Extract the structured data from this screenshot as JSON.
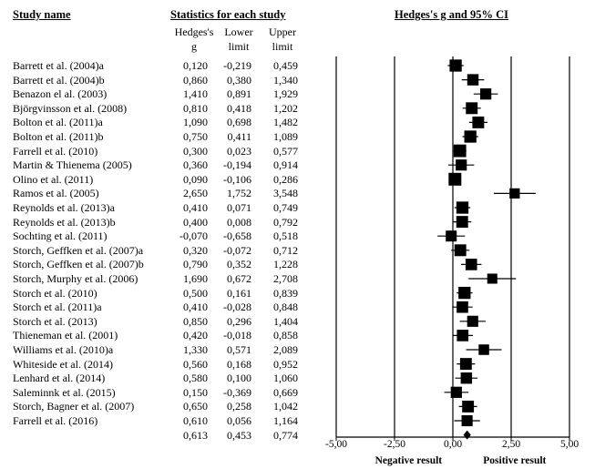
{
  "headers": {
    "study": "Study name",
    "stats": "Statistics for each study",
    "ci": "Hedges's g and 95% CI",
    "col_g": [
      "Hedges's",
      "g"
    ],
    "col_lower": [
      "Lower",
      "limit"
    ],
    "col_upper": [
      "Upper",
      "limit"
    ]
  },
  "rows": [
    {
      "name": "Barrett et al. (2004)a",
      "g": "0,120",
      "lower": "-0,219",
      "upper": "0,459"
    },
    {
      "name": "Barrett et al. (2004)b",
      "g": "0,860",
      "lower": "0,380",
      "upper": "1,340"
    },
    {
      "name": "Benazon el al. (2003)",
      "g": "1,410",
      "lower": "0,891",
      "upper": "1,929"
    },
    {
      "name": "Björgvinsson et al. (2008)",
      "g": "0,810",
      "lower": "0,418",
      "upper": "1,202"
    },
    {
      "name": "Bolton et al. (2011)a",
      "g": "1,090",
      "lower": "0,698",
      "upper": "1,482"
    },
    {
      "name": "Bolton et al. (2011)b",
      "g": "0,750",
      "lower": "0,411",
      "upper": "1,089"
    },
    {
      "name": "Farrell et al. (2010)",
      "g": "0,300",
      "lower": "0,023",
      "upper": "0,577"
    },
    {
      "name": "Martin & Thienema (2005)",
      "g": "0,360",
      "lower": "-0,194",
      "upper": "0,914"
    },
    {
      "name": "Olino et al. (2011)",
      "g": "0,090",
      "lower": "-0,106",
      "upper": "0,286"
    },
    {
      "name": "Ramos et al. (2005)",
      "g": "2,650",
      "lower": "1,752",
      "upper": "3,548"
    },
    {
      "name": "Reynolds et al. (2013)a",
      "g": "0,410",
      "lower": "0,071",
      "upper": "0,749"
    },
    {
      "name": "Reynolds et al. (2013)b",
      "g": "0,400",
      "lower": "0,008",
      "upper": "0,792"
    },
    {
      "name": "Sochting et al. (2011)",
      "g": "-0,070",
      "lower": "-0,658",
      "upper": "0,518"
    },
    {
      "name": "Storch, Geffken et al. (2007)a",
      "g": "0,320",
      "lower": "-0,072",
      "upper": "0,712"
    },
    {
      "name": "Storch, Geffken et al. (2007)b",
      "g": "0,790",
      "lower": "0,352",
      "upper": "1,228"
    },
    {
      "name": "Storch, Murphy et al. (2006)",
      "g": "1,690",
      "lower": "0,672",
      "upper": "2,708"
    },
    {
      "name": "Storch et al. (2010)",
      "g": "0,500",
      "lower": "0,161",
      "upper": "0,839"
    },
    {
      "name": "Storch et al. (2011)a",
      "g": "0,410",
      "lower": "-0,028",
      "upper": "0,848"
    },
    {
      "name": "Storch et al. (2013)",
      "g": "0,850",
      "lower": "0,296",
      "upper": "1,404"
    },
    {
      "name": "Thieneman et al. (2001)",
      "g": "0,420",
      "lower": "-0,018",
      "upper": "0,858"
    },
    {
      "name": "Williams et al. (2010)a",
      "g": "1,330",
      "lower": "0,571",
      "upper": "2,089"
    },
    {
      "name": "Whiteside et al. (2014)",
      "g": "0,560",
      "lower": "0,168",
      "upper": "0,952"
    },
    {
      "name": "Lenhard et al. (2014)",
      "g": "0,580",
      "lower": "0,100",
      "upper": "1,060"
    },
    {
      "name": "Saleminnk et al. (2015)",
      "g": "0,150",
      "lower": "-0,369",
      "upper": "0,669"
    },
    {
      "name": "Storch, Bagner et al. (2007)",
      "g": "0,650",
      "lower": "0,258",
      "upper": "1,042"
    },
    {
      "name": "Farrell et al. (2016)",
      "g": "0,610",
      "lower": "0,056",
      "upper": "1,164"
    }
  ],
  "summary": {
    "g": "0,613",
    "lower": "0,453",
    "upper": "0,774"
  },
  "chart_data": {
    "type": "forest",
    "xlim": [
      -5,
      5
    ],
    "ticks": [
      -5,
      -2.5,
      0,
      2.5,
      5
    ],
    "tick_labels": [
      "-5,00",
      "-2,50",
      "0,00",
      "2,50",
      "5,00"
    ],
    "left_label": "Negative result",
    "right_label": "Positive result",
    "points": [
      {
        "g": 0.12,
        "lo": -0.219,
        "hi": 0.459
      },
      {
        "g": 0.86,
        "lo": 0.38,
        "hi": 1.34
      },
      {
        "g": 1.41,
        "lo": 0.891,
        "hi": 1.929
      },
      {
        "g": 0.81,
        "lo": 0.418,
        "hi": 1.202
      },
      {
        "g": 1.09,
        "lo": 0.698,
        "hi": 1.482
      },
      {
        "g": 0.75,
        "lo": 0.411,
        "hi": 1.089
      },
      {
        "g": 0.3,
        "lo": 0.023,
        "hi": 0.577
      },
      {
        "g": 0.36,
        "lo": -0.194,
        "hi": 0.914
      },
      {
        "g": 0.09,
        "lo": -0.106,
        "hi": 0.286
      },
      {
        "g": 2.65,
        "lo": 1.752,
        "hi": 3.548
      },
      {
        "g": 0.41,
        "lo": 0.071,
        "hi": 0.749
      },
      {
        "g": 0.4,
        "lo": 0.008,
        "hi": 0.792
      },
      {
        "g": -0.07,
        "lo": -0.658,
        "hi": 0.518
      },
      {
        "g": 0.32,
        "lo": -0.072,
        "hi": 0.712
      },
      {
        "g": 0.79,
        "lo": 0.352,
        "hi": 1.228
      },
      {
        "g": 1.69,
        "lo": 0.672,
        "hi": 2.708
      },
      {
        "g": 0.5,
        "lo": 0.161,
        "hi": 0.839
      },
      {
        "g": 0.41,
        "lo": -0.028,
        "hi": 0.848
      },
      {
        "g": 0.85,
        "lo": 0.296,
        "hi": 1.404
      },
      {
        "g": 0.42,
        "lo": -0.018,
        "hi": 0.858
      },
      {
        "g": 1.33,
        "lo": 0.571,
        "hi": 2.089
      },
      {
        "g": 0.56,
        "lo": 0.168,
        "hi": 0.952
      },
      {
        "g": 0.58,
        "lo": 0.1,
        "hi": 1.06
      },
      {
        "g": 0.15,
        "lo": -0.369,
        "hi": 0.669
      },
      {
        "g": 0.65,
        "lo": 0.258,
        "hi": 1.042
      },
      {
        "g": 0.61,
        "lo": 0.056,
        "hi": 1.164
      }
    ],
    "summary": {
      "g": 0.613,
      "lo": 0.453,
      "hi": 0.774
    }
  }
}
